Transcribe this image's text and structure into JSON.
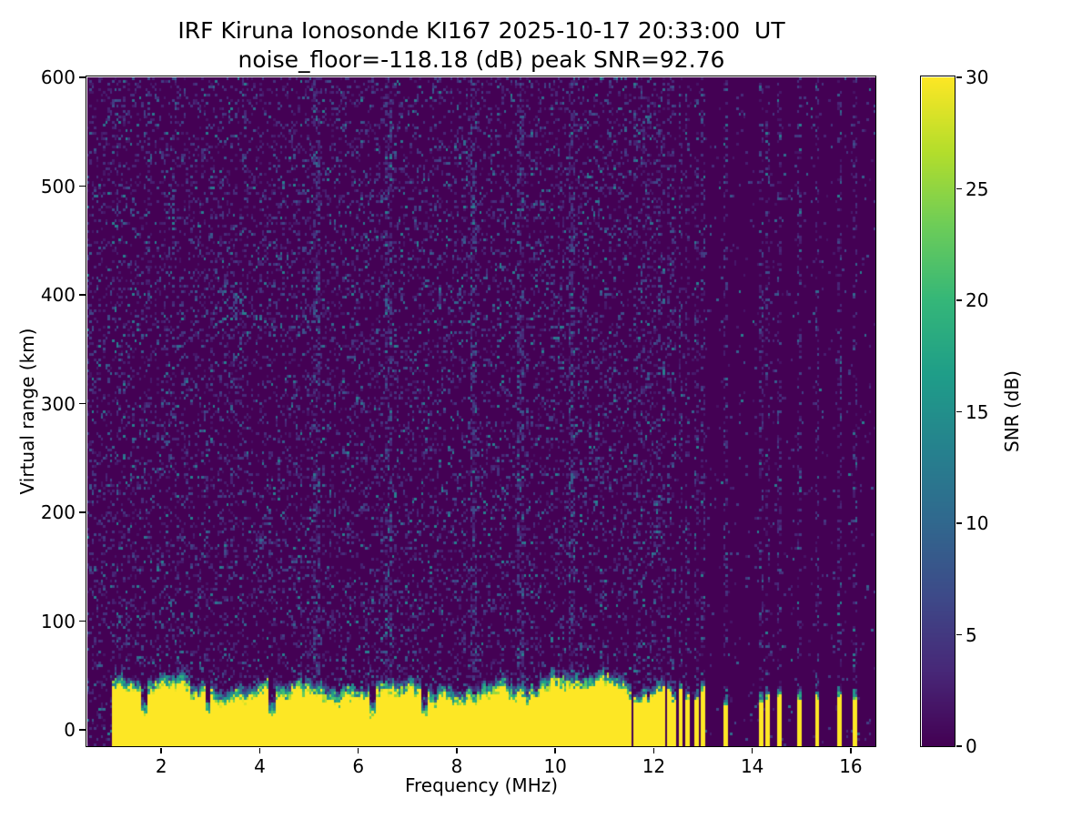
{
  "chart_data": {
    "type": "heatmap",
    "title_line1": "IRF Kiruna Ionosonde KI167 2025-10-17 20:33:00  UT",
    "title_line2": "noise_floor=-118.18 (dB) peak SNR=92.76",
    "station": "IRF Kiruna Ionosonde KI167",
    "timestamp_ut": "2025-10-17 20:33:00",
    "noise_floor_db": -118.18,
    "peak_snr_db": 92.76,
    "xlabel": "Frequency (MHz)",
    "ylabel": "Virtual range (km)",
    "colorbar_label": "SNR (dB)",
    "colormap": "viridis",
    "xlim": [
      0.5,
      16.5
    ],
    "ylim": [
      -15,
      600
    ],
    "clim": [
      0,
      30
    ],
    "x_ticks": [
      2,
      4,
      6,
      8,
      10,
      12,
      14,
      16
    ],
    "y_ticks": [
      0,
      100,
      200,
      300,
      400,
      500,
      600
    ],
    "colorbar_ticks": [
      0,
      5,
      10,
      15,
      20,
      25,
      30
    ],
    "features": {
      "ground_return_band": {
        "freq_mhz": [
          1.0,
          11.55
        ],
        "top_km_range": [
          12,
          46
        ],
        "snr_db": ">=30 saturated yellow"
      },
      "band_notches_mhz": [
        1.65,
        2.95,
        4.25,
        6.3,
        7.35
      ],
      "interference_stripes_mhz": [
        11.62,
        11.72,
        11.8,
        11.9,
        11.98,
        12.08,
        12.18,
        12.3,
        12.42,
        12.55,
        12.7,
        12.85,
        13.0,
        13.45,
        14.2,
        14.32,
        14.55,
        14.95,
        15.3,
        15.78,
        16.08
      ],
      "noisy_columns_mhz": [
        5.15,
        6.6,
        8.35,
        9.3,
        10.35
      ],
      "ionospheric_echo": {
        "freq_mhz": [
          3.05,
          5.55
        ],
        "virtual_range_km": [
          355,
          420
        ],
        "snr_db": [
          5,
          14
        ]
      },
      "background_speckle_snr_db": [
        1,
        10
      ]
    }
  }
}
